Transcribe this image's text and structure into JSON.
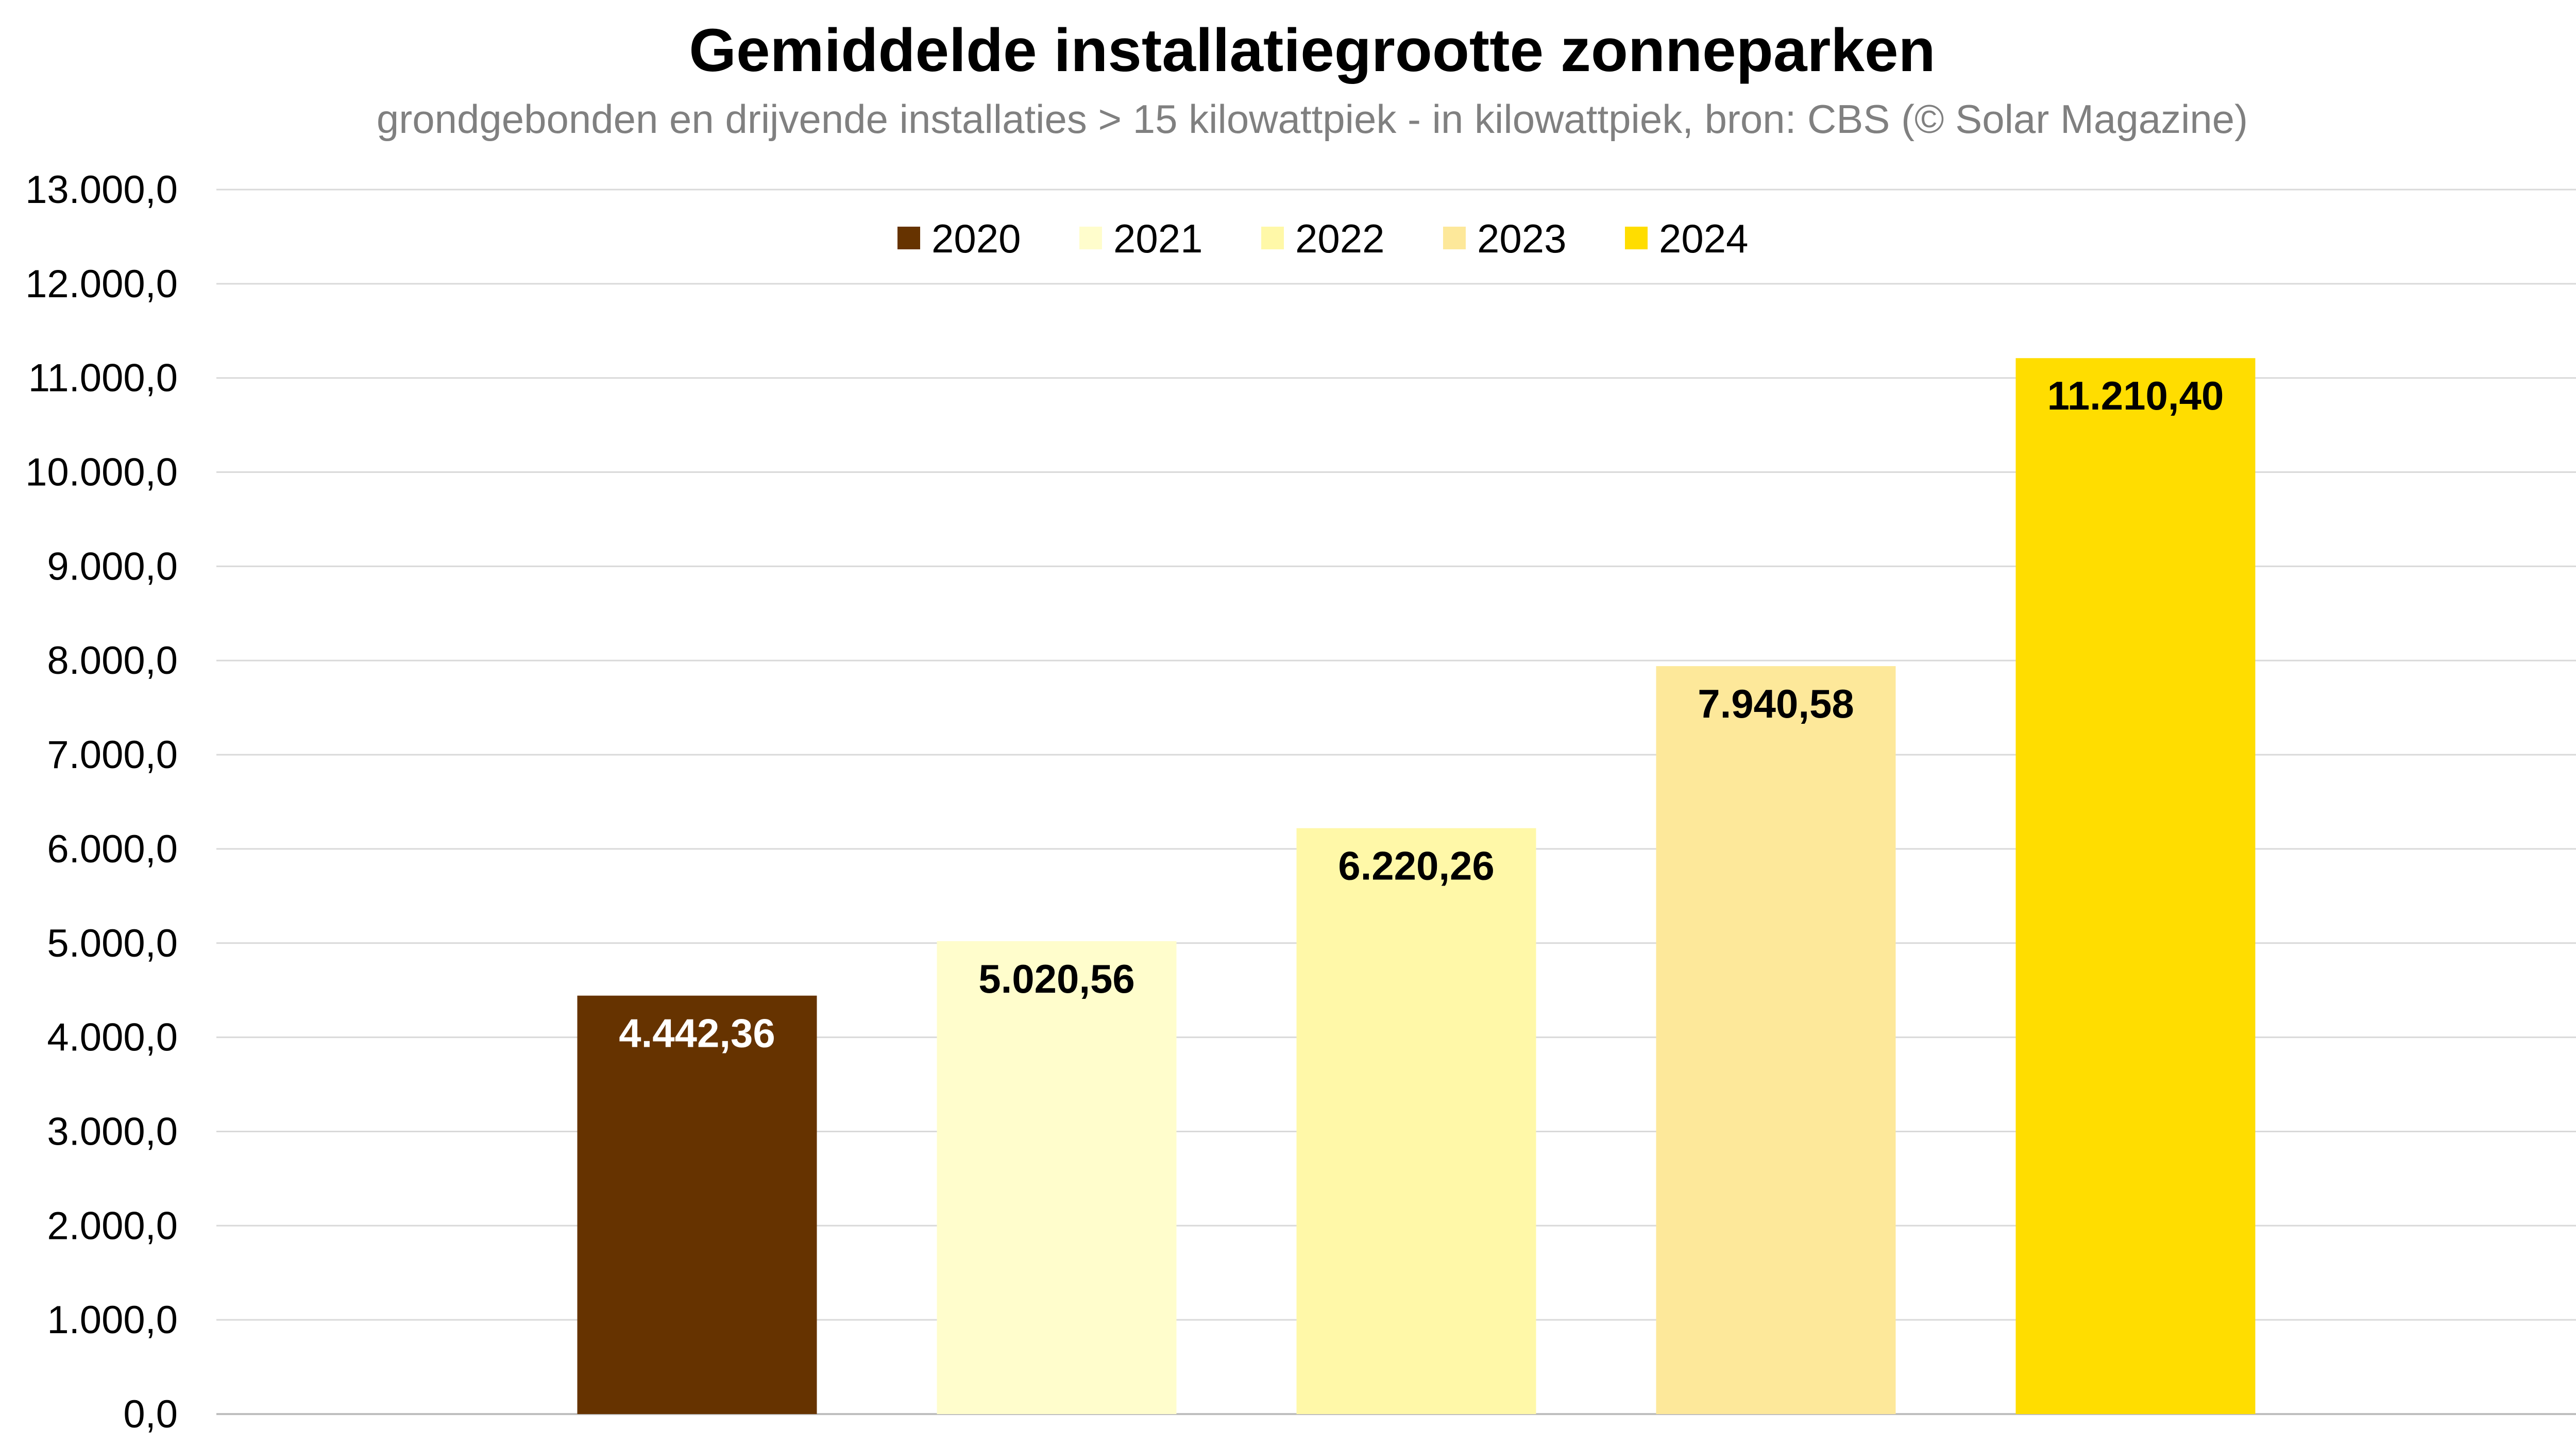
{
  "chart_data": {
    "type": "bar",
    "title": "Gemiddelde installatiegrootte zonneparken",
    "subtitle": "grondgebonden en drijvende installaties > 15 kilowattpiek - in kilowattpiek, bron: CBS (© Solar Magazine)",
    "xlabel": "",
    "ylabel": "",
    "ylim": [
      0,
      13000
    ],
    "yticks": [
      "0,0",
      "1.000,0",
      "2.000,0",
      "3.000,0",
      "4.000,0",
      "5.000,0",
      "6.000,0",
      "7.000,0",
      "8.000,0",
      "9.000,0",
      "10.000,0",
      "11.000,0",
      "12.000,0",
      "13.000,0"
    ],
    "grid": true,
    "legend_position": "top-center",
    "series": [
      {
        "name": "2020",
        "value": 4442.36,
        "label": "4.442,36",
        "color": "#663300",
        "label_color": "#ffffff"
      },
      {
        "name": "2021",
        "value": 5020.56,
        "label": "5.020,56",
        "color": "#FFFDCC",
        "label_color": "#000000"
      },
      {
        "name": "2022",
        "value": 6220.26,
        "label": "6.220,26",
        "color": "#FFF8A8",
        "label_color": "#000000"
      },
      {
        "name": "2023",
        "value": 7940.58,
        "label": "7.940,58",
        "color": "#FDE89A",
        "label_color": "#000000"
      },
      {
        "name": "2024",
        "value": 11210.4,
        "label": "11.210,40",
        "color": "#FFDD00",
        "label_color": "#000000"
      }
    ]
  }
}
